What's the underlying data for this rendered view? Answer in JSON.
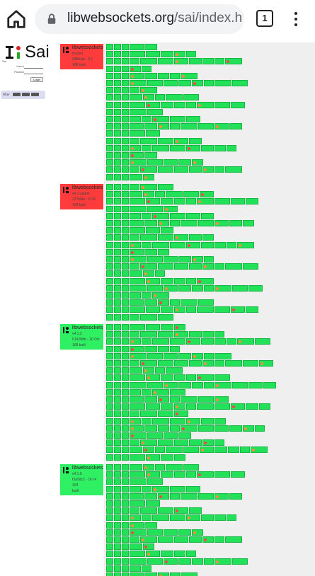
{
  "browser": {
    "url_host": "libwebsockets.org",
    "url_path": "/sai/index.h",
    "tab_count": "1",
    "icons": {
      "home": "home-icon",
      "lock": "lock-icon",
      "tabs": "tab-switcher-icon",
      "menu": "more-vert-icon"
    }
  },
  "sai": {
    "logo_text": "Sai",
    "login": {
      "heading": "Sai",
      "username_label": "Usern",
      "password_label": "Passwo",
      "submit_label": "Login"
    },
    "filter_label": "Filter"
  },
  "colors": {
    "pass": "#22e058",
    "pass_border": "#16b843",
    "fail": "#ff4444",
    "running": "#ff8c3a",
    "card_fail": "#ff3b3b",
    "card_pass": "#2ef062",
    "grey": "#efefef"
  },
  "commits": [
    {
      "status": "fail",
      "repo": "libwebsockets",
      "branch": "master",
      "hash": "b4fbcda - 3:1",
      "time": "108 built",
      "extra": ""
    },
    {
      "status": "fail",
      "repo": "libwebsockets",
      "branch": "v4.1-stable",
      "hash": "227bfde - D:16",
      "time": "108 built",
      "extra": ""
    },
    {
      "status": "pass",
      "repo": "libwebsockets",
      "branch": "v4.1.2",
      "hash": "61428db - 10 Oct",
      "time": "108 built",
      "extra": ""
    },
    {
      "status": "pass",
      "repo": "libwebsockets",
      "branch": "v4.1.0",
      "hash": "f3a9dc2 - Oct 4",
      "time": "103",
      "extra": "built"
    }
  ]
}
